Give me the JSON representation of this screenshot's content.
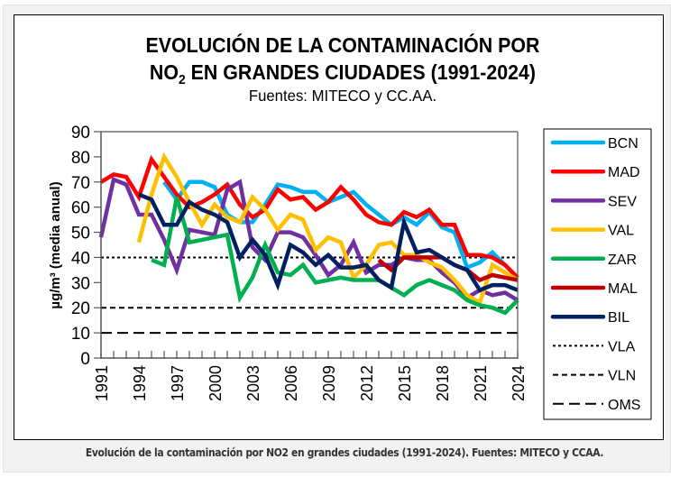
{
  "caption": "Evolución de la contaminación por NO2 en grandes ciudades (1991-2024). Fuentes: MITECO y CCAA.",
  "chart_data": {
    "type": "line",
    "title_line1": "EVOLUCIÓN DE LA CONTAMINACIÓN POR",
    "title_line2_prefix": "NO",
    "title_line2_sub": "2",
    "title_line2_suffix": " EN GRANDES CIUDADES (1991-2024)",
    "subtitle": "Fuentes: MITECO y CC.AA.",
    "xlabel": "",
    "ylabel": "µg/m³ (media anual)",
    "ylim": [
      0,
      90
    ],
    "xlim": [
      1991,
      2024
    ],
    "yticks": [
      0,
      10,
      20,
      30,
      40,
      50,
      60,
      70,
      80,
      90
    ],
    "xtick_labels": [
      "1991",
      "1994",
      "1997",
      "2000",
      "2003",
      "2006",
      "2009",
      "2012",
      "2015",
      "2018",
      "2021",
      "2024"
    ],
    "grid": false,
    "legend": "right",
    "series": [
      {
        "name": "BCN",
        "color": "#00b0f0",
        "x": [
          1996,
          1997,
          1998,
          1999,
          2000,
          2001,
          2002,
          2003,
          2004,
          2005,
          2006,
          2007,
          2008,
          2009,
          2010,
          2011,
          2012,
          2013,
          2014,
          2015,
          2016,
          2017,
          2018,
          2019,
          2020,
          2021,
          2022,
          2023,
          2024
        ],
        "values": [
          70,
          63,
          70,
          70,
          68,
          57,
          54,
          54,
          61,
          69,
          68,
          66,
          66,
          62,
          64,
          66,
          61,
          57,
          53,
          56,
          53,
          58,
          52,
          50,
          36,
          38,
          42,
          37,
          32
        ]
      },
      {
        "name": "MAD",
        "color": "#ff0000",
        "x": [
          1991,
          1992,
          1993,
          1994,
          1995,
          1996,
          1997,
          1998,
          1999,
          2000,
          2001,
          2002,
          2003,
          2004,
          2005,
          2006,
          2007,
          2008,
          2009,
          2010,
          2011,
          2012,
          2013,
          2014,
          2015,
          2016,
          2017,
          2018,
          2019,
          2020,
          2021,
          2022,
          2023,
          2024
        ],
        "values": [
          70,
          73,
          72,
          64,
          79,
          72,
          65,
          60,
          62,
          65,
          69,
          61,
          56,
          59,
          67,
          63,
          64,
          59,
          62,
          68,
          63,
          57,
          54,
          53,
          58,
          56,
          59,
          53,
          53,
          41,
          41,
          40,
          37,
          32
        ]
      },
      {
        "name": "SEV",
        "color": "#7030a0",
        "x": [
          1991,
          1992,
          1993,
          1994,
          1995,
          1996,
          1997,
          1998,
          1999,
          2000,
          2001,
          2002,
          2003,
          2004,
          2005,
          2006,
          2007,
          2008,
          2009,
          2010,
          2011,
          2012,
          2013,
          2014,
          2015,
          2016,
          2017,
          2018,
          2019,
          2020,
          2021,
          2022,
          2023,
          2024
        ],
        "values": [
          48,
          71,
          69,
          57,
          57,
          47,
          35,
          51,
          50,
          49,
          67,
          70,
          44,
          39,
          50,
          50,
          48,
          41,
          33,
          37,
          46,
          34,
          37,
          37,
          40,
          39,
          39,
          34,
          30,
          24,
          27,
          25,
          26,
          23
        ]
      },
      {
        "name": "VAL",
        "color": "#ffc000",
        "x": [
          1994,
          1995,
          1996,
          1997,
          1998,
          1999,
          2000,
          2001,
          2002,
          2003,
          2004,
          2005,
          2006,
          2007,
          2008,
          2009,
          2010,
          2011,
          2012,
          2013,
          2014,
          2015,
          2016,
          2017,
          2018,
          2019,
          2020,
          2021,
          2022,
          2023,
          2024
        ],
        "values": [
          46,
          65,
          80,
          72,
          62,
          53,
          61,
          56,
          54,
          64,
          59,
          51,
          57,
          55,
          43,
          48,
          46,
          32,
          37,
          45,
          46,
          41,
          41,
          38,
          36,
          31,
          25,
          22,
          37,
          34,
          31
        ]
      },
      {
        "name": "ZAR",
        "color": "#00b050",
        "x": [
          1995,
          1996,
          1997,
          1998,
          1999,
          2000,
          2001,
          2002,
          2003,
          2004,
          2005,
          2006,
          2007,
          2008,
          2009,
          2010,
          2011,
          2012,
          2013,
          2014,
          2015,
          2016,
          2017,
          2018,
          2019,
          2020,
          2021,
          2022,
          2023,
          2024
        ],
        "values": [
          39,
          37,
          64,
          46,
          47,
          48,
          49,
          24,
          32,
          45,
          34,
          33,
          37,
          30,
          31,
          32,
          31,
          31,
          31,
          28,
          25,
          29,
          31,
          29,
          27,
          23,
          21,
          20,
          18,
          23
        ]
      },
      {
        "name": "MAL",
        "color": "#c00000",
        "x": [
          2013,
          2014,
          2015,
          2016,
          2017,
          2018,
          2019,
          2020,
          2021,
          2022,
          2023,
          2024
        ],
        "values": [
          39,
          35,
          40,
          40,
          40,
          40,
          37,
          35,
          31,
          33,
          32,
          31
        ]
      },
      {
        "name": "BIL",
        "color": "#002060",
        "x": [
          1994,
          1995,
          1996,
          1997,
          1998,
          1999,
          2000,
          2001,
          2002,
          2003,
          2004,
          2005,
          2006,
          2007,
          2008,
          2009,
          2010,
          2011,
          2012,
          2013,
          2014,
          2015,
          2016,
          2017,
          2018,
          2019,
          2020,
          2021,
          2022,
          2023,
          2024
        ],
        "values": [
          65,
          63,
          53,
          53,
          62,
          59,
          57,
          54,
          40,
          47,
          41,
          29,
          45,
          42,
          37,
          41,
          36,
          36,
          37,
          31,
          28,
          54,
          42,
          43,
          40,
          37,
          35,
          27,
          29,
          29,
          27
        ]
      }
    ],
    "reference_lines": [
      {
        "name": "VLA",
        "value": 40,
        "style": "dotted"
      },
      {
        "name": "VLN",
        "value": 20,
        "style": "dashed"
      },
      {
        "name": "OMS",
        "value": 10,
        "style": "long-dashed"
      }
    ]
  }
}
